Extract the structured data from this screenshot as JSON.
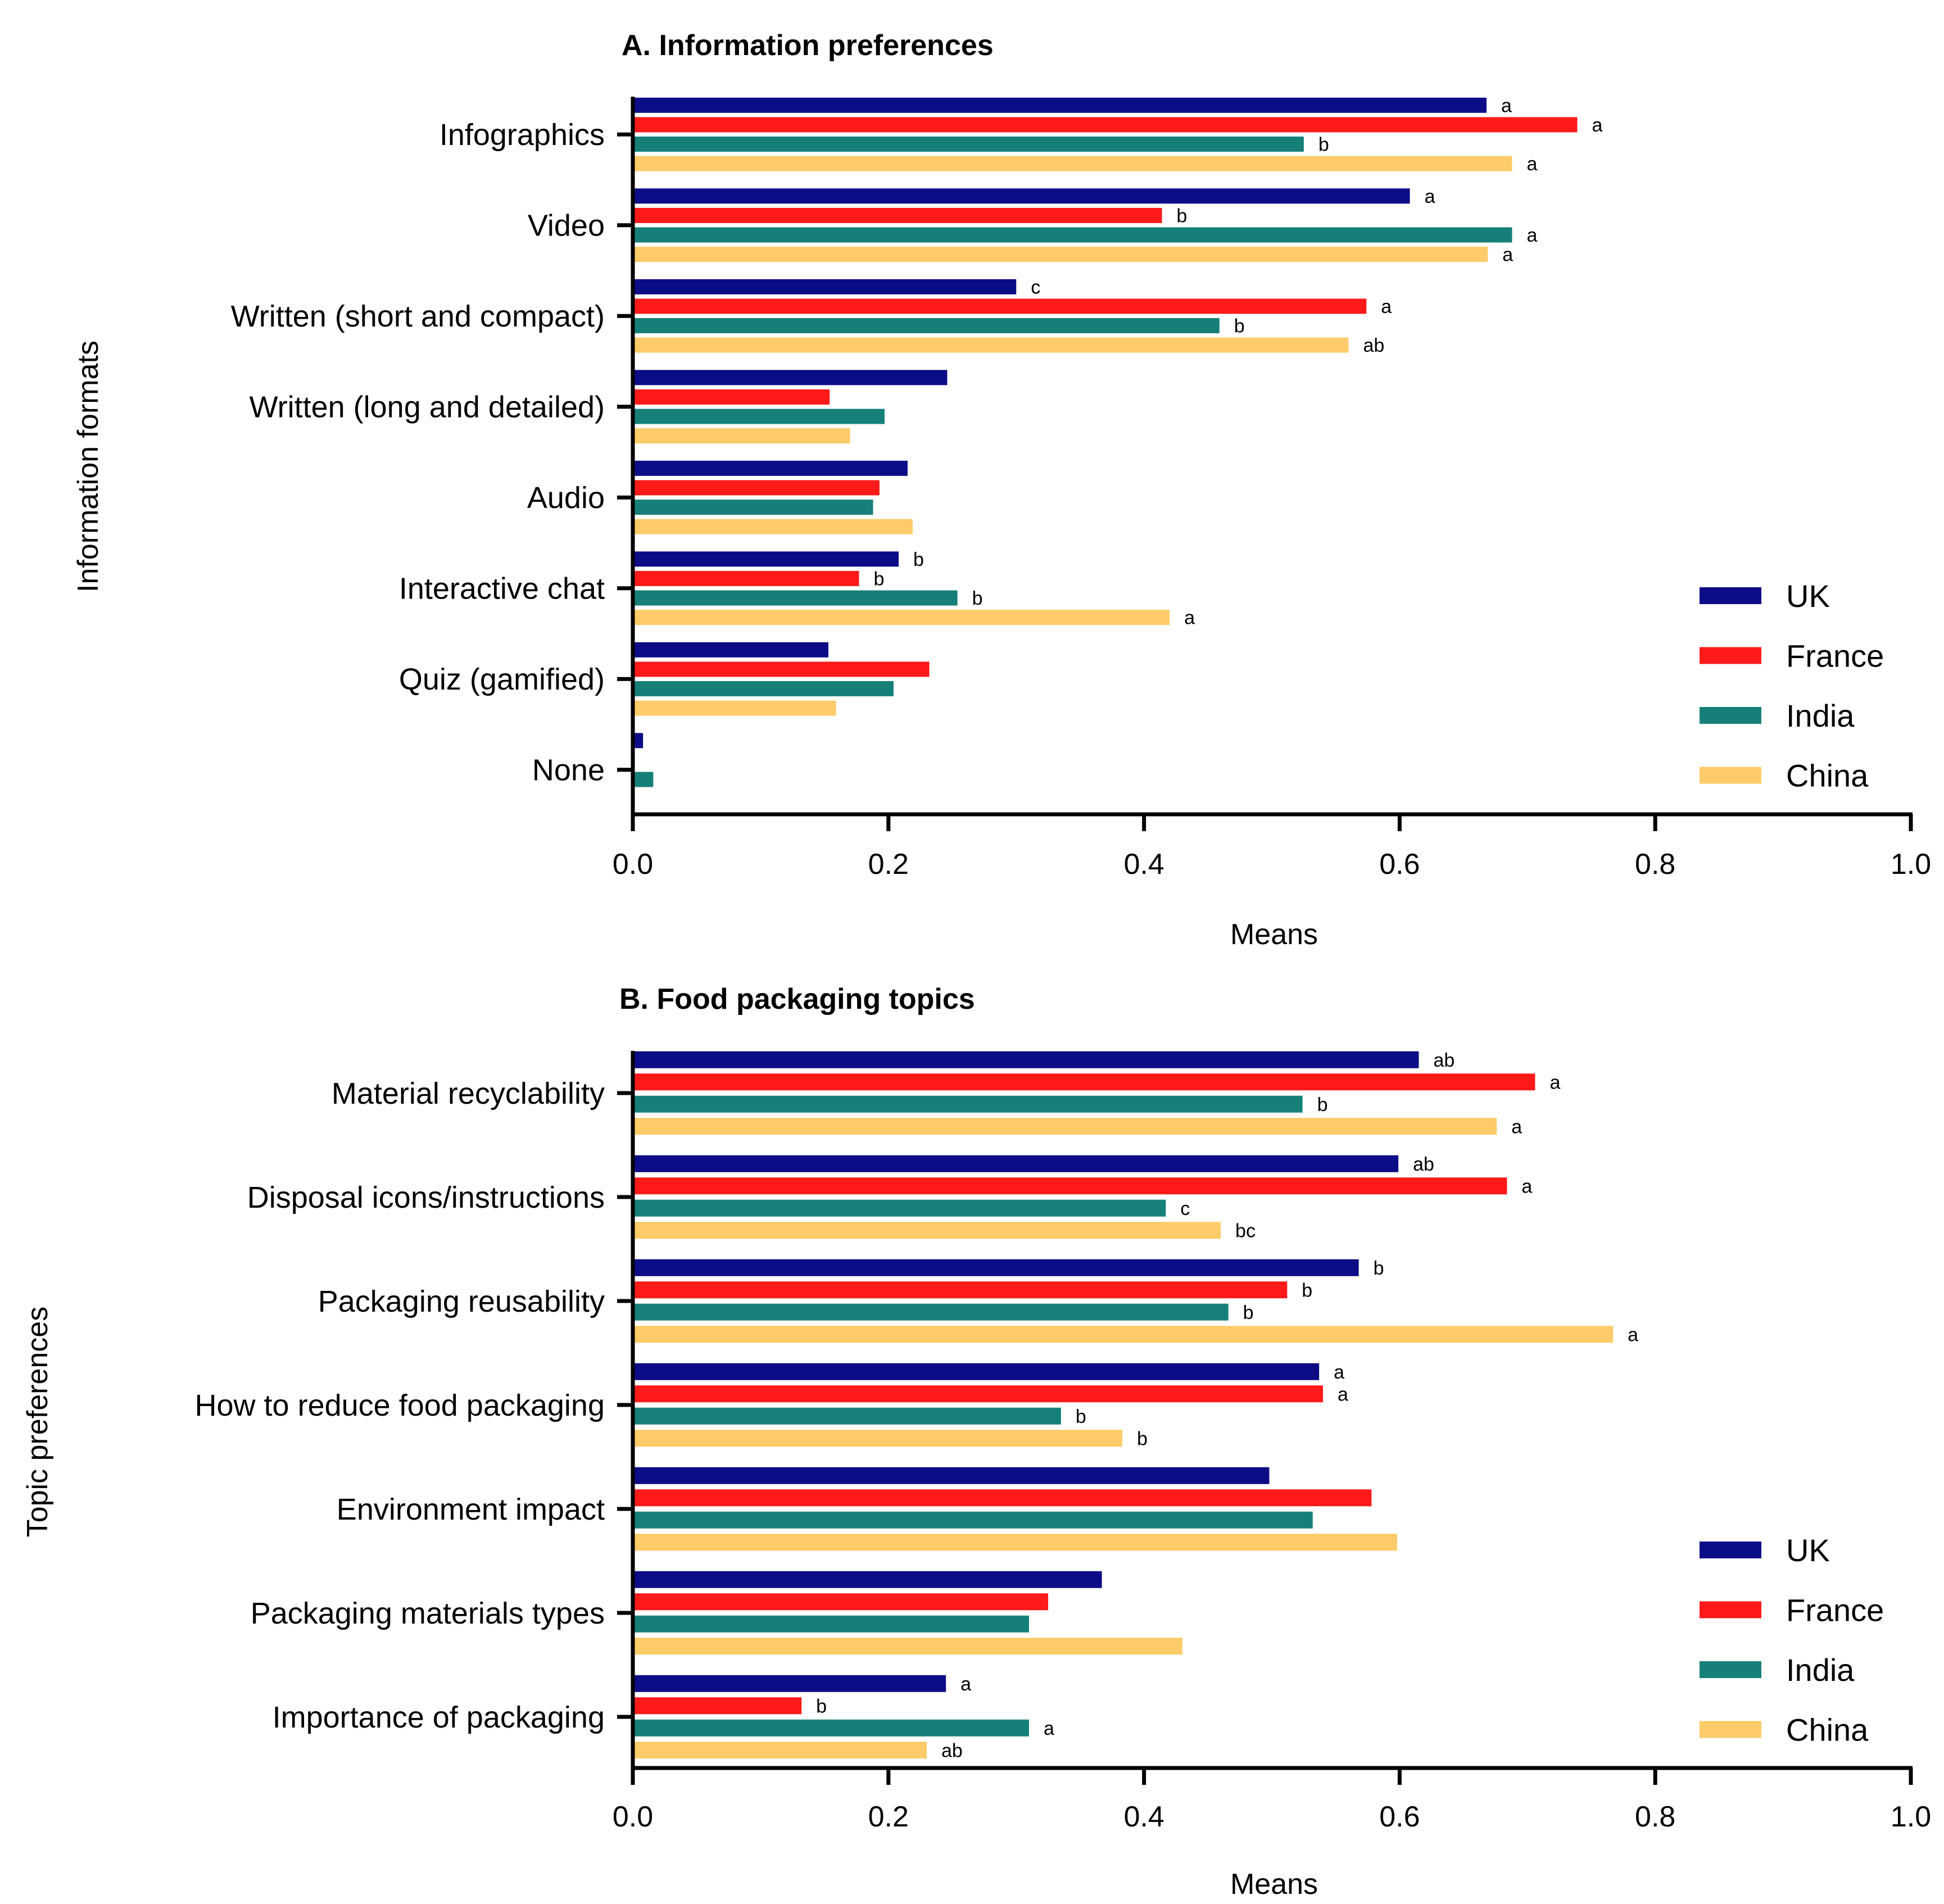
{
  "colors": {
    "UK": "#0c0c86",
    "France": "#ff1a1a",
    "India": "#168078",
    "China": "#fdcb69"
  },
  "chart_data": [
    {
      "type": "bar",
      "orientation": "horizontal",
      "title": "A. Information preferences",
      "xlabel": "Means",
      "ylabel": "Information formats",
      "xlim": [
        0,
        1.0
      ],
      "xticks": [
        "0.0",
        "0.2",
        "0.4",
        "0.6",
        "0.8",
        "1.0"
      ],
      "legend_position": "bottom-right",
      "categories": [
        "Infographics",
        "Video",
        "Written (short and compact)",
        "Written (long and detailed)",
        "Audio",
        "Interactive chat",
        "Quiz (gamified)",
        "None"
      ],
      "series": [
        {
          "name": "UK",
          "values": [
            0.668,
            0.608,
            0.3,
            0.246,
            0.215,
            0.208,
            0.153,
            0.008
          ],
          "labels": [
            "a",
            "a",
            "c",
            "",
            "",
            "b",
            "",
            ""
          ]
        },
        {
          "name": "France",
          "values": [
            0.739,
            0.414,
            0.574,
            0.154,
            0.193,
            0.177,
            0.232,
            0
          ],
          "labels": [
            "a",
            "b",
            "a",
            "",
            "",
            "b",
            "",
            ""
          ]
        },
        {
          "name": "India",
          "values": [
            0.525,
            0.688,
            0.459,
            0.197,
            0.188,
            0.254,
            0.204,
            0.016
          ],
          "labels": [
            "b",
            "a",
            "b",
            "",
            "",
            "b",
            "",
            ""
          ]
        },
        {
          "name": "China",
          "values": [
            0.688,
            0.669,
            0.56,
            0.17,
            0.219,
            0.42,
            0.159,
            0
          ],
          "labels": [
            "a",
            "a",
            "ab",
            "",
            "",
            "a",
            "",
            ""
          ]
        }
      ]
    },
    {
      "type": "bar",
      "orientation": "horizontal",
      "title": "B. Food packaging topics",
      "xlabel": "Means",
      "ylabel": "Topic preferences",
      "xlim": [
        0,
        1.0
      ],
      "xticks": [
        "0.0",
        "0.2",
        "0.4",
        "0.6",
        "0.8",
        "1.0"
      ],
      "legend_position": "bottom-right",
      "categories": [
        "Material recyclability",
        "Disposal icons/instructions",
        "Packaging reusability",
        "How to reduce food packaging",
        "Environment impact",
        "Packaging materials types",
        "Importance of packaging"
      ],
      "series": [
        {
          "name": "UK",
          "values": [
            0.615,
            0.599,
            0.568,
            0.537,
            0.498,
            0.367,
            0.245
          ],
          "labels": [
            "ab",
            "ab",
            "b",
            "a",
            "",
            "",
            "a"
          ]
        },
        {
          "name": "France",
          "values": [
            0.706,
            0.684,
            0.512,
            0.54,
            0.578,
            0.325,
            0.132
          ],
          "labels": [
            "a",
            "a",
            "b",
            "a",
            "",
            "",
            "b"
          ]
        },
        {
          "name": "India",
          "values": [
            0.524,
            0.417,
            0.466,
            0.335,
            0.532,
            0.31,
            0.31
          ],
          "labels": [
            "b",
            "c",
            "b",
            "b",
            "",
            "",
            "a"
          ]
        },
        {
          "name": "China",
          "values": [
            0.676,
            0.46,
            0.767,
            0.383,
            0.598,
            0.43,
            0.23
          ],
          "labels": [
            "a",
            "bc",
            "a",
            "b",
            "",
            "",
            "ab"
          ]
        }
      ]
    }
  ]
}
